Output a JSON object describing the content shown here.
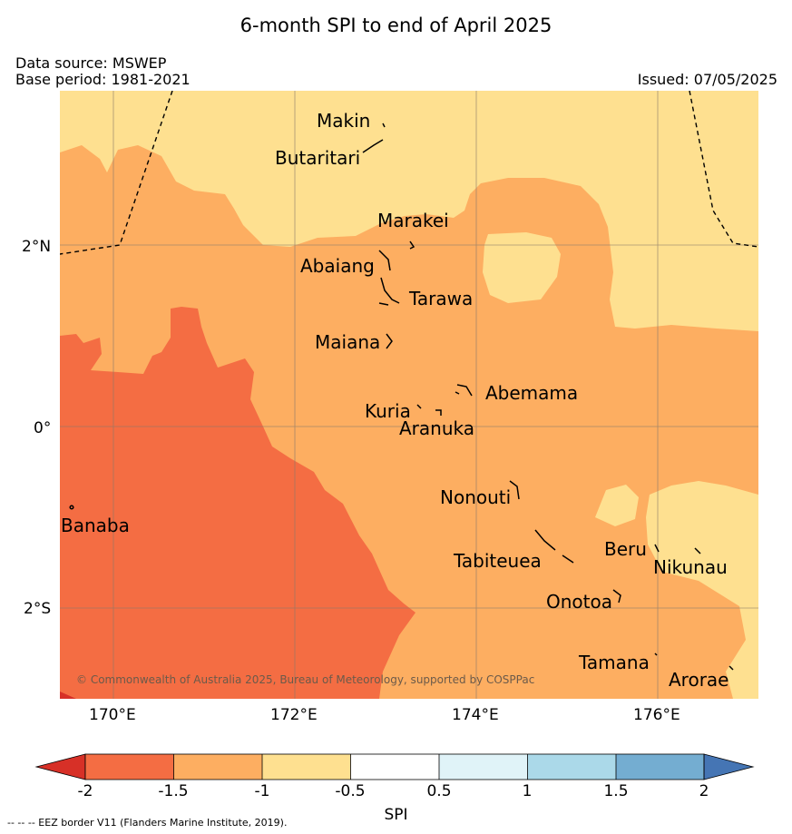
{
  "title": "6-month SPI to end of April 2025",
  "source_line": "Data source: MSWEP",
  "base_period": "Base period: 1981-2021",
  "issued": "Issued: 07/05/2025",
  "latitude_labels": [
    "2°N",
    "0°",
    "2°S"
  ],
  "longitude_labels": [
    "170°E",
    "172°E",
    "174°E",
    "176°E"
  ],
  "places": {
    "makin": "Makin",
    "butaritari": "Butaritari",
    "marakei": "Marakei",
    "abaiang": "Abaiang",
    "tarawa": "Tarawa",
    "maiana": "Maiana",
    "abemama": "Abemama",
    "kuria": "Kuria",
    "aranuka": "Aranuka",
    "nonouti": "Nonouti",
    "banaba": "Banaba",
    "beru": "Beru",
    "nikunau": "Nikunau",
    "tabiteuea": "Tabiteuea",
    "onotoa": "Onotoa",
    "tamana": "Tamana",
    "arorae": "Arorae"
  },
  "credit": "© Commonwealth of Australia 2025, Bureau of Meteorology, supported by COSPPac",
  "colorbar": {
    "label": "SPI",
    "ticks": [
      "-2",
      "-1.5",
      "-1",
      "-0.5",
      "0.5",
      "1",
      "1.5",
      "2"
    ],
    "colors": {
      "below_min": "#d73027",
      "spi_-2_to_-1.5": "#f46d43",
      "spi_-1.5_to_-1": "#fdae61",
      "spi_-1_to_-0.5": "#fee090",
      "spi_-0.5_to_0.5": "#ffffff",
      "spi_0.5_to_1": "#e0f3f8",
      "spi_1_to_1.5": "#abd9e9",
      "spi_1.5_to_2": "#74add1",
      "above_max": "#4575b4"
    }
  },
  "eez_note": "--  --  -- EEZ border V11 (Flanders Marine Institute, 2019)."
}
